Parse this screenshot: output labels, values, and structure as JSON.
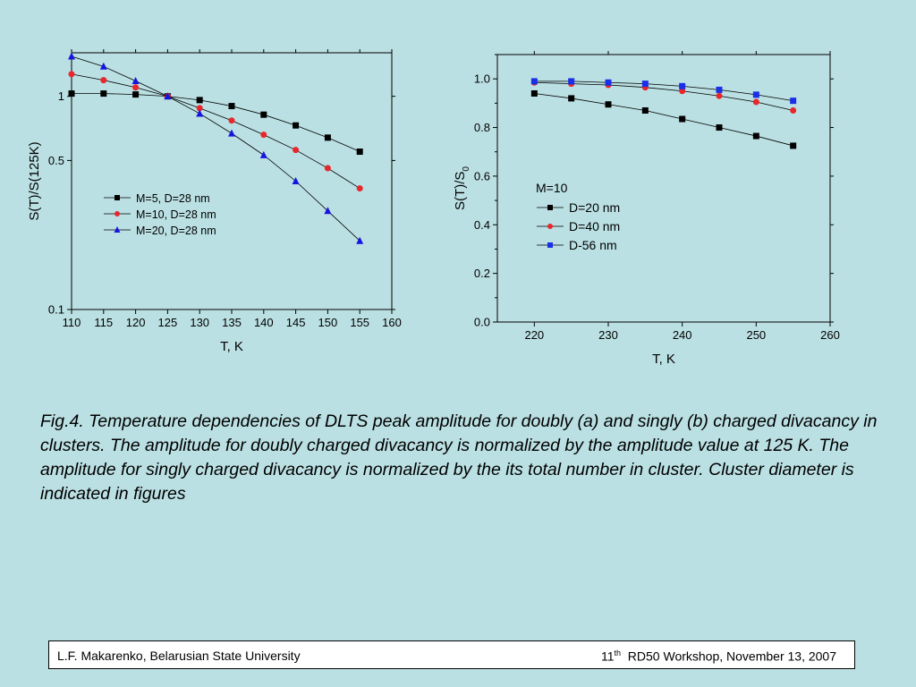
{
  "background": "#bbe0e3",
  "chart_data": [
    {
      "type": "line",
      "panel": "a",
      "xlabel": "T, K",
      "ylabel": "S(T)/S(125K)",
      "xlim": [
        110,
        160
      ],
      "ylim": [
        0.1,
        1.6
      ],
      "yscale": "log",
      "xticks": [
        110,
        115,
        120,
        125,
        130,
        135,
        140,
        145,
        150,
        155,
        160
      ],
      "yticks": [
        0.1,
        0.5,
        1
      ],
      "ytick_labels": [
        "0.1",
        "0.5",
        "1"
      ],
      "grid": false,
      "legend_position": "middle-left",
      "series": [
        {
          "name": "M=5, D=28 nm",
          "marker": "square",
          "color": "#000000",
          "x": [
            110,
            115,
            120,
            125,
            130,
            135,
            140,
            145,
            150,
            155
          ],
          "y": [
            1.03,
            1.03,
            1.02,
            1.0,
            0.96,
            0.9,
            0.82,
            0.73,
            0.64,
            0.55
          ]
        },
        {
          "name": "M=10, D=28 nm",
          "marker": "circle",
          "color": "#e8262b",
          "x": [
            110,
            115,
            120,
            125,
            130,
            135,
            140,
            145,
            150,
            155
          ],
          "y": [
            1.27,
            1.19,
            1.1,
            1.0,
            0.88,
            0.77,
            0.66,
            0.56,
            0.46,
            0.37
          ]
        },
        {
          "name": "M=20, D=28 nm",
          "marker": "triangle",
          "color": "#1515e0",
          "x": [
            110,
            115,
            120,
            125,
            130,
            135,
            140,
            145,
            150,
            155
          ],
          "y": [
            1.54,
            1.38,
            1.18,
            1.0,
            0.83,
            0.67,
            0.53,
            0.4,
            0.29,
            0.21
          ]
        }
      ]
    },
    {
      "type": "line",
      "panel": "b",
      "xlabel": "T, K",
      "ylabel": "S(T)/S",
      "ylabel_subscript": "0",
      "xlim": [
        215,
        260
      ],
      "ylim": [
        0.0,
        1.1
      ],
      "xticks": [
        220,
        230,
        240,
        250,
        260
      ],
      "yticks": [
        0.0,
        0.2,
        0.4,
        0.6,
        0.8,
        1.0
      ],
      "ytick_labels": [
        "0.0",
        "0.2",
        "0.4",
        "0.6",
        "0.8",
        "1.0"
      ],
      "grid": false,
      "legend_title": "M=10",
      "legend_position": "middle-left",
      "series": [
        {
          "name": "D=20 nm",
          "marker": "square",
          "color": "#000000",
          "x": [
            220,
            225,
            230,
            235,
            240,
            245,
            250,
            255
          ],
          "y": [
            0.94,
            0.92,
            0.895,
            0.87,
            0.835,
            0.8,
            0.765,
            0.725
          ]
        },
        {
          "name": "D=40 nm",
          "marker": "circle",
          "color": "#e8262b",
          "x": [
            220,
            225,
            230,
            235,
            240,
            245,
            250,
            255
          ],
          "y": [
            0.985,
            0.98,
            0.975,
            0.965,
            0.95,
            0.93,
            0.905,
            0.87
          ]
        },
        {
          "name": "D-56 nm",
          "marker": "square",
          "color": "#1a2fe8",
          "x": [
            220,
            225,
            230,
            235,
            240,
            245,
            250,
            255
          ],
          "y": [
            0.99,
            0.99,
            0.985,
            0.98,
            0.97,
            0.955,
            0.935,
            0.91
          ]
        }
      ]
    }
  ],
  "caption": "Fig.4. Temperature dependencies of DLTS peak amplitude for doubly (a) and singly (b) charged divacancy in clusters. The amplitude for doubly charged divacancy is normalized by the amplitude value at 125 K. The amplitude for singly charged divacancy is normalized by the its total number in cluster. Cluster diameter is indicated in figures",
  "footer": {
    "left": "L.F. Makarenko, Belarusian State University",
    "right_number": "11",
    "right_sup": "th",
    "right_text": "  RD50 Workshop, November 13, 2007"
  }
}
